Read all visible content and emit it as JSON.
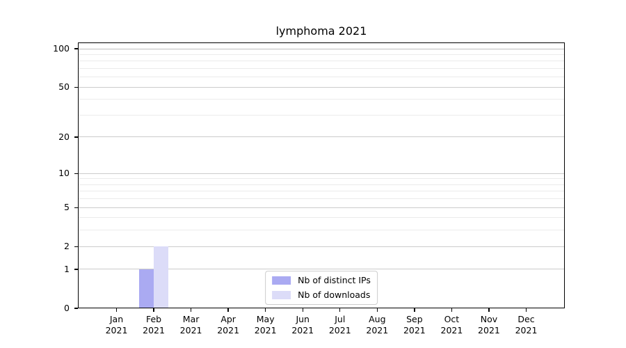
{
  "chart_data": {
    "type": "bar",
    "title": "lymphoma 2021",
    "categories": [
      "Jan",
      "Feb",
      "Mar",
      "Apr",
      "May",
      "Jun",
      "Jul",
      "Aug",
      "Sep",
      "Oct",
      "Nov",
      "Dec"
    ],
    "year": "2021",
    "series": [
      {
        "name": "Nb of distinct IPs",
        "color": "#aaaaf2",
        "values": [
          0,
          1,
          0,
          0,
          0,
          0,
          0,
          0,
          0,
          0,
          0,
          0
        ]
      },
      {
        "name": "Nb of downloads",
        "color": "#dcdcf8",
        "values": [
          0,
          2,
          0,
          0,
          0,
          0,
          0,
          0,
          0,
          0,
          0,
          0
        ]
      }
    ],
    "xlabel": "",
    "ylabel": "",
    "y_scale": "log1p",
    "ylim": [
      0,
      112
    ],
    "y_major_ticks": [
      0,
      1,
      2,
      5,
      10,
      20,
      50,
      100
    ],
    "y_minor_ticks": [
      3,
      4,
      6,
      7,
      8,
      9,
      30,
      40,
      60,
      70,
      80,
      90
    ],
    "grid": "horizontal-y",
    "legend_position": "lower center"
  },
  "colors": {
    "background": "#ffffff",
    "axis": "#000000",
    "text": "#000000",
    "grid_major": "#cbcbcb",
    "grid_major_top": "#bdbdbd",
    "grid_minor": "#ebebeb",
    "legend_border": "#cccccc"
  }
}
